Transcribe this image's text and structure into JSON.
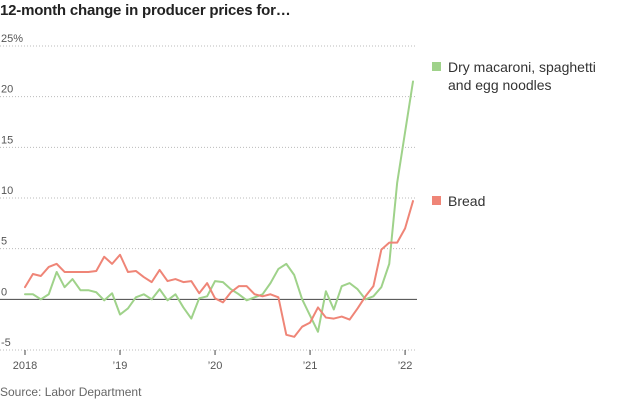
{
  "chart_data": {
    "type": "line",
    "title": "12-month change in producer prices for…",
    "source": "Source: Labor Department",
    "xlabel": "",
    "ylabel": "",
    "ylim": [
      -5,
      25
    ],
    "y_ticks": [
      -5,
      0,
      5,
      10,
      15,
      20,
      25
    ],
    "y_tick_labels": [
      "-5",
      "0",
      "5",
      "10",
      "15",
      "20",
      "25%"
    ],
    "x_ticks": [
      "2018-01",
      "2019-01",
      "2020-01",
      "2021-01",
      "2022-01"
    ],
    "x_tick_labels": [
      "2018",
      "’19",
      "’20",
      "’21",
      "’22"
    ],
    "x_range": [
      "2018-01",
      "2022-02"
    ],
    "grid": "horizontal dotted",
    "legend": "right, beside series ends",
    "series": [
      {
        "name": "Dry macaroni, spaghetti and egg noodles",
        "legend_lines": [
          "Dry macaroni, spaghetti",
          "and egg noodles"
        ],
        "color": "#9fd28a",
        "points": [
          [
            "2018-01",
            0.5
          ],
          [
            "2018-02",
            0.5
          ],
          [
            "2018-03",
            0.0
          ],
          [
            "2018-04",
            0.5
          ],
          [
            "2018-05",
            2.7
          ],
          [
            "2018-06",
            1.2
          ],
          [
            "2018-07",
            2.0
          ],
          [
            "2018-08",
            0.9
          ],
          [
            "2018-09",
            0.9
          ],
          [
            "2018-10",
            0.7
          ],
          [
            "2018-11",
            -0.1
          ],
          [
            "2018-12",
            0.6
          ],
          [
            "2019-01",
            -1.5
          ],
          [
            "2019-02",
            -0.9
          ],
          [
            "2019-03",
            0.2
          ],
          [
            "2019-04",
            0.5
          ],
          [
            "2019-05",
            0.0
          ],
          [
            "2019-06",
            1.0
          ],
          [
            "2019-07",
            -0.1
          ],
          [
            "2019-08",
            0.5
          ],
          [
            "2019-09",
            -0.8
          ],
          [
            "2019-10",
            -1.9
          ],
          [
            "2019-11",
            0.1
          ],
          [
            "2019-12",
            0.3
          ],
          [
            "2020-01",
            1.8
          ],
          [
            "2020-02",
            1.7
          ],
          [
            "2020-03",
            1.0
          ],
          [
            "2020-04",
            0.5
          ],
          [
            "2020-05",
            -0.1
          ],
          [
            "2020-06",
            0.2
          ],
          [
            "2020-07",
            0.5
          ],
          [
            "2020-08",
            1.6
          ],
          [
            "2020-09",
            3.0
          ],
          [
            "2020-10",
            3.5
          ],
          [
            "2020-11",
            2.4
          ],
          [
            "2020-12",
            0.0
          ],
          [
            "2021-01",
            -1.6
          ],
          [
            "2021-02",
            -3.2
          ],
          [
            "2021-03",
            0.8
          ],
          [
            "2021-04",
            -1.0
          ],
          [
            "2021-05",
            1.3
          ],
          [
            "2021-06",
            1.6
          ],
          [
            "2021-07",
            1.0
          ],
          [
            "2021-08",
            0.0
          ],
          [
            "2021-09",
            0.3
          ],
          [
            "2021-10",
            1.2
          ],
          [
            "2021-11",
            3.5
          ],
          [
            "2021-12",
            11.5
          ],
          [
            "2022-01",
            16.5
          ],
          [
            "2022-02",
            21.5
          ]
        ]
      },
      {
        "name": "Bread",
        "legend_lines": [
          "Bread"
        ],
        "color": "#ef8577",
        "points": [
          [
            "2018-01",
            1.2
          ],
          [
            "2018-02",
            2.5
          ],
          [
            "2018-03",
            2.3
          ],
          [
            "2018-04",
            3.2
          ],
          [
            "2018-05",
            3.5
          ],
          [
            "2018-06",
            2.7
          ],
          [
            "2018-07",
            2.7
          ],
          [
            "2018-08",
            2.7
          ],
          [
            "2018-09",
            2.7
          ],
          [
            "2018-10",
            2.8
          ],
          [
            "2018-11",
            4.2
          ],
          [
            "2018-12",
            3.5
          ],
          [
            "2019-01",
            4.4
          ],
          [
            "2019-02",
            2.7
          ],
          [
            "2019-03",
            2.8
          ],
          [
            "2019-04",
            2.2
          ],
          [
            "2019-05",
            1.7
          ],
          [
            "2019-06",
            2.9
          ],
          [
            "2019-07",
            1.8
          ],
          [
            "2019-08",
            2.0
          ],
          [
            "2019-09",
            1.7
          ],
          [
            "2019-10",
            1.8
          ],
          [
            "2019-11",
            0.6
          ],
          [
            "2019-12",
            1.6
          ],
          [
            "2020-01",
            0.1
          ],
          [
            "2020-02",
            -0.3
          ],
          [
            "2020-03",
            0.7
          ],
          [
            "2020-04",
            1.3
          ],
          [
            "2020-05",
            1.3
          ],
          [
            "2020-06",
            0.5
          ],
          [
            "2020-07",
            0.3
          ],
          [
            "2020-08",
            0.5
          ],
          [
            "2020-09",
            0.2
          ],
          [
            "2020-10",
            -3.5
          ],
          [
            "2020-11",
            -3.7
          ],
          [
            "2020-12",
            -2.7
          ],
          [
            "2021-01",
            -2.3
          ],
          [
            "2021-02",
            -0.8
          ],
          [
            "2021-03",
            -1.8
          ],
          [
            "2021-04",
            -1.9
          ],
          [
            "2021-05",
            -1.7
          ],
          [
            "2021-06",
            -2.0
          ],
          [
            "2021-07",
            -0.9
          ],
          [
            "2021-08",
            0.3
          ],
          [
            "2021-09",
            1.3
          ],
          [
            "2021-10",
            4.9
          ],
          [
            "2021-11",
            5.6
          ],
          [
            "2021-12",
            5.6
          ],
          [
            "2022-01",
            7.0
          ],
          [
            "2022-02",
            9.7
          ]
        ]
      }
    ]
  }
}
